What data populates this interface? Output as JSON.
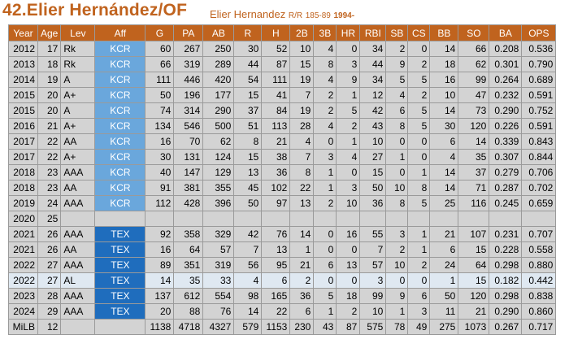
{
  "header": {
    "title": "42.Elier Hernández/OF",
    "name": "Elier Hernandez",
    "bats_throws": "R/R",
    "height_weight": "185-89",
    "born_year": "1994-"
  },
  "colors": {
    "accent": "#c0631e",
    "kcr": "#6aa7dc",
    "tex": "#1f6dbd",
    "cell": "#d3d3d3",
    "highlight": "#dfe8f1"
  },
  "columns": [
    "Year",
    "Age",
    "Lev",
    "Aff",
    "G",
    "PA",
    "AB",
    "R",
    "H",
    "2B",
    "3B",
    "HR",
    "RBI",
    "SB",
    "CS",
    "BB",
    "SO",
    "BA",
    "OPS"
  ],
  "rows": [
    [
      "2012",
      "17",
      "Rk",
      "KCR",
      "60",
      "267",
      "250",
      "30",
      "52",
      "10",
      "4",
      "0",
      "34",
      "2",
      "0",
      "14",
      "66",
      "0.208",
      "0.536"
    ],
    [
      "2013",
      "18",
      "Rk",
      "KCR",
      "66",
      "319",
      "289",
      "44",
      "87",
      "15",
      "8",
      "3",
      "44",
      "9",
      "2",
      "18",
      "62",
      "0.301",
      "0.790"
    ],
    [
      "2014",
      "19",
      "A",
      "KCR",
      "111",
      "446",
      "420",
      "54",
      "111",
      "19",
      "4",
      "9",
      "34",
      "5",
      "5",
      "16",
      "99",
      "0.264",
      "0.689"
    ],
    [
      "2015",
      "20",
      "A+",
      "KCR",
      "50",
      "196",
      "177",
      "15",
      "41",
      "7",
      "2",
      "1",
      "12",
      "4",
      "2",
      "10",
      "47",
      "0.232",
      "0.591"
    ],
    [
      "2015",
      "20",
      "A",
      "KCR",
      "74",
      "314",
      "290",
      "37",
      "84",
      "19",
      "2",
      "5",
      "42",
      "6",
      "5",
      "14",
      "73",
      "0.290",
      "0.752"
    ],
    [
      "2016",
      "21",
      "A+",
      "KCR",
      "134",
      "546",
      "500",
      "51",
      "113",
      "28",
      "4",
      "2",
      "43",
      "8",
      "5",
      "30",
      "120",
      "0.226",
      "0.591"
    ],
    [
      "2017",
      "22",
      "AA",
      "KCR",
      "16",
      "70",
      "62",
      "8",
      "21",
      "4",
      "0",
      "1",
      "10",
      "0",
      "0",
      "6",
      "14",
      "0.339",
      "0.843"
    ],
    [
      "2017",
      "22",
      "A+",
      "KCR",
      "30",
      "131",
      "124",
      "15",
      "38",
      "7",
      "3",
      "4",
      "27",
      "1",
      "0",
      "4",
      "35",
      "0.307",
      "0.844"
    ],
    [
      "2018",
      "23",
      "AAA",
      "KCR",
      "40",
      "147",
      "129",
      "13",
      "36",
      "8",
      "1",
      "0",
      "15",
      "0",
      "1",
      "14",
      "37",
      "0.279",
      "0.706"
    ],
    [
      "2018",
      "23",
      "AA",
      "KCR",
      "91",
      "381",
      "355",
      "45",
      "102",
      "22",
      "1",
      "3",
      "50",
      "10",
      "8",
      "14",
      "71",
      "0.287",
      "0.702"
    ],
    [
      "2019",
      "24",
      "AAA",
      "KCR",
      "112",
      "428",
      "396",
      "50",
      "97",
      "13",
      "2",
      "10",
      "36",
      "8",
      "5",
      "25",
      "116",
      "0.245",
      "0.659"
    ],
    [
      "2020",
      "25",
      "",
      "",
      "",
      "",
      "",
      "",
      "",
      "",
      "",
      "",
      "",
      "",
      "",
      "",
      "",
      "",
      ""
    ],
    [
      "2021",
      "26",
      "AAA",
      "TEX",
      "92",
      "358",
      "329",
      "42",
      "76",
      "14",
      "0",
      "16",
      "55",
      "3",
      "1",
      "21",
      "107",
      "0.231",
      "0.707"
    ],
    [
      "2021",
      "26",
      "AA",
      "TEX",
      "16",
      "64",
      "57",
      "7",
      "13",
      "1",
      "0",
      "0",
      "7",
      "2",
      "1",
      "6",
      "15",
      "0.228",
      "0.558"
    ],
    [
      "2022",
      "27",
      "AAA",
      "TEX",
      "89",
      "351",
      "319",
      "56",
      "95",
      "21",
      "6",
      "13",
      "57",
      "10",
      "2",
      "24",
      "64",
      "0.298",
      "0.880"
    ],
    [
      "2022",
      "27",
      "AL",
      "TEX",
      "14",
      "35",
      "33",
      "4",
      "6",
      "2",
      "0",
      "0",
      "3",
      "0",
      "0",
      "1",
      "15",
      "0.182",
      "0.442"
    ],
    [
      "2023",
      "28",
      "AAA",
      "TEX",
      "137",
      "612",
      "554",
      "98",
      "165",
      "36",
      "5",
      "18",
      "99",
      "9",
      "6",
      "50",
      "120",
      "0.298",
      "0.838"
    ],
    [
      "2024",
      "29",
      "AAA",
      "TEX",
      "20",
      "88",
      "76",
      "14",
      "22",
      "6",
      "1",
      "2",
      "10",
      "1",
      "3",
      "11",
      "21",
      "0.290",
      "0.860"
    ],
    [
      "MiLB",
      "12",
      "",
      "",
      "1138",
      "4718",
      "4327",
      "579",
      "1153",
      "230",
      "43",
      "87",
      "575",
      "78",
      "49",
      "275",
      "1073",
      "0.267",
      "0.717"
    ]
  ]
}
